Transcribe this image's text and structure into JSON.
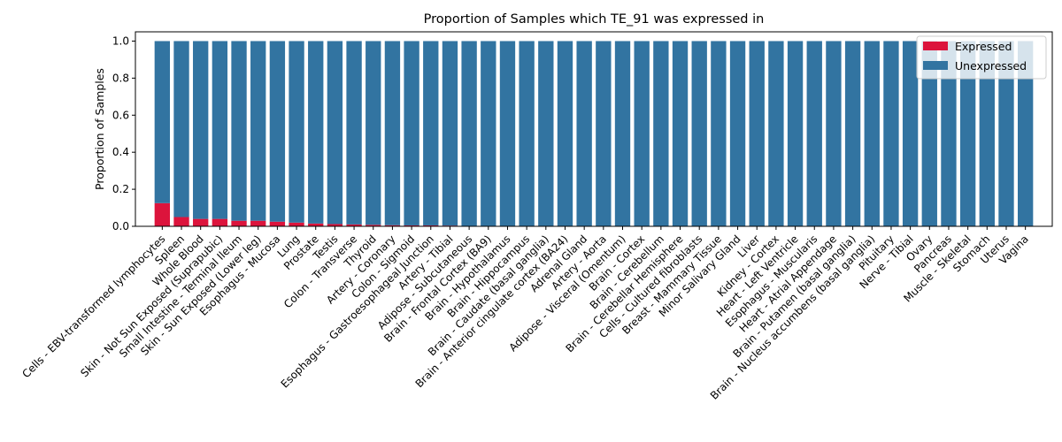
{
  "chart_data": {
    "type": "bar",
    "title": "Proportion of Samples which TE_91 was expressed in",
    "xlabel": "",
    "ylabel": "Proportion of Samples",
    "ylim": [
      0,
      1.05
    ],
    "yticks": [
      "0.0",
      "0.2",
      "0.4",
      "0.6",
      "0.8",
      "1.0"
    ],
    "stacked": true,
    "legend_position": "top-right",
    "grid": false,
    "categories": [
      "Cells - EBV-transformed lymphocytes",
      "Spleen",
      "Whole Blood",
      "Skin - Not Sun Exposed (Suprapubic)",
      "Small Intestine - Terminal Ileum",
      "Skin - Sun Exposed (Lower leg)",
      "Esophagus - Mucosa",
      "Lung",
      "Prostate",
      "Testis",
      "Colon - Transverse",
      "Thyroid",
      "Artery - Coronary",
      "Colon - Sigmoid",
      "Esophagus - Gastroesophageal Junction",
      "Artery - Tibial",
      "Adipose - Subcutaneous",
      "Brain - Frontal Cortex (BA9)",
      "Brain - Hypothalamus",
      "Brain - Hippocampus",
      "Brain - Caudate (basal ganglia)",
      "Brain - Anterior cingulate cortex (BA24)",
      "Adrenal Gland",
      "Artery - Aorta",
      "Adipose - Visceral (Omentum)",
      "Brain - Cortex",
      "Brain - Cerebellum",
      "Brain - Cerebellar Hemisphere",
      "Cells - Cultured fibroblasts",
      "Breast - Mammary Tissue",
      "Minor Salivary Gland",
      "Liver",
      "Kidney - Cortex",
      "Heart - Left Ventricle",
      "Esophagus - Muscularis",
      "Heart - Atrial Appendage",
      "Brain - Putamen (basal ganglia)",
      "Brain - Nucleus accumbens (basal ganglia)",
      "Pituitary",
      "Nerve - Tibial",
      "Ovary",
      "Pancreas",
      "Muscle - Skeletal",
      "Stomach",
      "Uterus",
      "Vagina"
    ],
    "series": [
      {
        "name": "Expressed",
        "color": "#dc143c",
        "values": [
          0.125,
          0.05,
          0.04,
          0.04,
          0.03,
          0.03,
          0.025,
          0.02,
          0.015,
          0.012,
          0.01,
          0.008,
          0.006,
          0.005,
          0.005,
          0.004,
          0,
          0,
          0,
          0,
          0,
          0,
          0,
          0,
          0,
          0,
          0,
          0,
          0,
          0,
          0,
          0,
          0,
          0,
          0,
          0,
          0,
          0,
          0,
          0,
          0,
          0,
          0,
          0,
          0,
          0
        ]
      },
      {
        "name": "Unexpressed",
        "color": "#3274a1",
        "values": [
          0.875,
          0.95,
          0.96,
          0.96,
          0.97,
          0.97,
          0.975,
          0.98,
          0.985,
          0.988,
          0.99,
          0.992,
          0.994,
          0.995,
          0.995,
          0.996,
          1,
          1,
          1,
          1,
          1,
          1,
          1,
          1,
          1,
          1,
          1,
          1,
          1,
          1,
          1,
          1,
          1,
          1,
          1,
          1,
          1,
          1,
          1,
          1,
          1,
          1,
          1,
          1,
          1,
          1
        ]
      }
    ]
  }
}
